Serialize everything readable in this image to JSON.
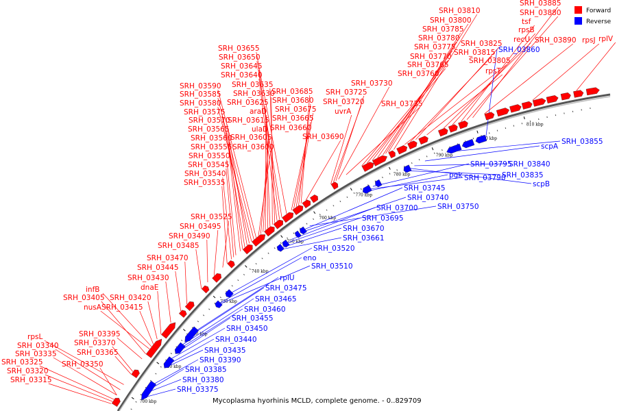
{
  "caption": "Mycoplasma hyorhinis MCLD, complete genome. - 0..829709",
  "legend": [
    {
      "label": "Forward",
      "color": "#ff0000"
    },
    {
      "label": "Reverse",
      "color": "#0000ff"
    }
  ],
  "colors": {
    "forward": "#ff0000",
    "reverse": "#0000ff",
    "backbone": "#808080"
  },
  "ticks": [
    "700 kbp",
    "710 kbp",
    "720 kbp",
    "730 kbp",
    "740 kbp",
    "750 kbp",
    "760 kbp",
    "770 kbp",
    "780 kbp",
    "790 kbp",
    "800 kbp",
    "810 kbp"
  ],
  "forward_labels": [
    "SRH_03315",
    "SRH_03320",
    "SRH_03325",
    "SRH_03335",
    "SRH_03340",
    "rpsL",
    "SRH_03350",
    "SRH_03365",
    "SRH_03370",
    "SRH_03395",
    "SRH_03405",
    "nusA",
    "infB",
    "SRH_03415",
    "SRH_03420",
    "dnaE",
    "SRH_03430",
    "SRH_03445",
    "SRH_03470",
    "SRH_03485",
    "SRH_03490",
    "SRH_03495",
    "SRH_03525",
    "SRH_03535",
    "SRH_03540",
    "SRH_03545",
    "SRH_03550",
    "SRH_03555",
    "SRH_03560",
    "SRH_03565",
    "SRH_03570",
    "SRH_03575",
    "SRH_03580",
    "SRH_03585",
    "SRH_03590",
    "SRH_03600",
    "SRH_03605",
    "ulaD",
    "SRH_03615",
    "araD",
    "SRH_03625",
    "SRH_03630",
    "SRH_03635",
    "SRH_03640",
    "SRH_03645",
    "SRH_03650",
    "SRH_03655",
    "SRH_03660",
    "SRH_03665",
    "SRH_03675",
    "SRH_03680",
    "SRH_03685",
    "SRH_03690",
    "uvrA",
    "SRH_03720",
    "SRH_03725",
    "SRH_03730",
    "SRH_03735",
    "SRH_03760",
    "SRH_03765",
    "SRH_03770",
    "SRH_03775",
    "SRH_03780",
    "SRH_03785",
    "SRH_03800",
    "SRH_03810",
    "SRH_03805",
    "SRH_03815",
    "SRH_03825",
    "rpsT",
    "recU",
    "rpsB",
    "tsf",
    "SRH_03880",
    "SRH_03885",
    "SRH_03890",
    "rpsJ",
    "rplV"
  ],
  "reverse_labels": [
    "SRH_03375",
    "SRH_03380",
    "SRH_03385",
    "SRH_03390",
    "SRH_03435",
    "SRH_03440",
    "SRH_03450",
    "SRH_03455",
    "SRH_03460",
    "SRH_03465",
    "SRH_03475",
    "rplU",
    "SRH_03510",
    "eno",
    "SRH_03520",
    "SRH_03661",
    "SRH_03670",
    "SRH_03695",
    "SRH_03700",
    "SRH_03740",
    "SRH_03745",
    "SRH_03750",
    "pgk",
    "SRH_03790",
    "SRH_03795",
    "SRH_03835",
    "scpB",
    "SRH_03840",
    "scpA",
    "SRH_03855",
    "SRH_03860"
  ]
}
